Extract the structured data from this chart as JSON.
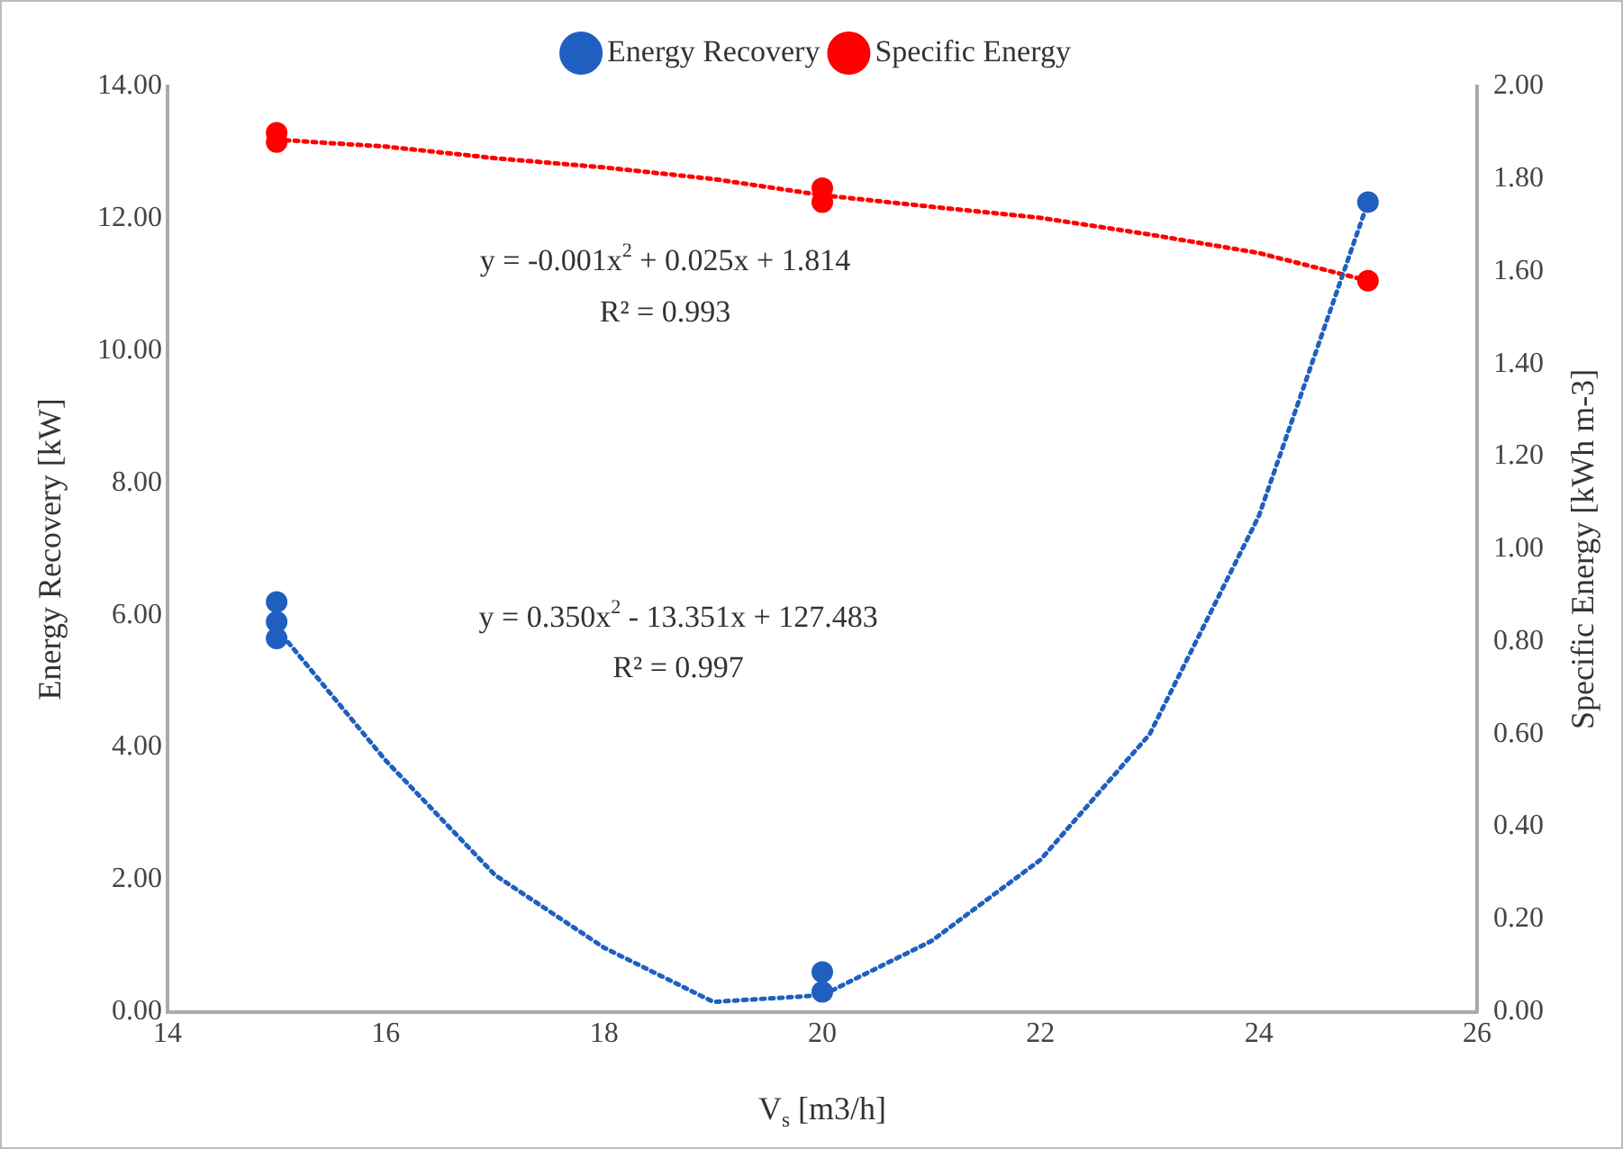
{
  "chart_data": {
    "type": "scatter",
    "xlabel": "V$_{s}$ [m3/h]",
    "ylabel": "Energy Recovery [kW]",
    "y2label": "Specific Energy [kWh m-3]",
    "xlim": [
      14,
      26
    ],
    "xticks": [
      14,
      16,
      18,
      20,
      22,
      24,
      26
    ],
    "ylim": [
      0,
      14
    ],
    "yticks": [
      {
        "value": 0,
        "label": "0.00"
      },
      {
        "value": 2,
        "label": "2.00"
      },
      {
        "value": 4,
        "label": "4.00"
      },
      {
        "value": 6,
        "label": "6.00"
      },
      {
        "value": 8,
        "label": "8.00"
      },
      {
        "value": 10,
        "label": "10.00"
      },
      {
        "value": 12,
        "label": "12.00"
      },
      {
        "value": 14,
        "label": "14.00"
      }
    ],
    "y2lim": [
      0,
      2
    ],
    "y2ticks": [
      {
        "value": 0,
        "label": "0.00"
      },
      {
        "value": 0.2,
        "label": "0.20"
      },
      {
        "value": 0.4,
        "label": "0.40"
      },
      {
        "value": 0.6,
        "label": "0.60"
      },
      {
        "value": 0.8,
        "label": "0.80"
      },
      {
        "value": 1,
        "label": "1.00"
      },
      {
        "value": 1.2,
        "label": "1.20"
      },
      {
        "value": 1.4,
        "label": "1.40"
      },
      {
        "value": 1.6,
        "label": "1.60"
      },
      {
        "value": 1.8,
        "label": "1.80"
      },
      {
        "value": 2,
        "label": "2.00"
      }
    ],
    "grid": false,
    "legend": "top",
    "marker": "circle",
    "series": [
      {
        "name": "Energy Recovery",
        "color": "#1f5fbf",
        "x": [
          15,
          15,
          15,
          20,
          20,
          25
        ],
        "values": [
          6.2,
          5.9,
          5.65,
          0.6,
          0.3,
          12.25
        ]
      },
      {
        "name": "Specific Energy",
        "color": "#ff0000",
        "axis": "y2",
        "x": [
          15,
          15,
          20,
          20,
          25
        ],
        "values": [
          1.9,
          1.88,
          1.78,
          1.75,
          1.58
        ]
      },
      {
        "type": "line",
        "color": "#1f5fbf",
        "line_style": "dotted",
        "marker": "none",
        "x": [
          15,
          16,
          17,
          18,
          19,
          20,
          21,
          22,
          23,
          24,
          25
        ],
        "values": [
          5.8,
          3.8,
          2.07,
          0.97,
          0.15,
          0.25,
          1.07,
          2.3,
          4.2,
          7.5,
          12.25
        ]
      },
      {
        "type": "line",
        "color": "#ff0000",
        "line_style": "dotted",
        "marker": "none",
        "axis": "y2",
        "x": [
          15,
          16,
          17,
          18,
          19,
          20,
          21,
          22,
          23,
          24,
          25
        ],
        "values": [
          1.885,
          1.87,
          1.845,
          1.825,
          1.8,
          1.765,
          1.74,
          1.716,
          1.68,
          1.64,
          1.58
        ]
      }
    ],
    "annotations": [
      "y = -0.001x$^{2}$ + 0.025x + 1.814",
      "R² = 0.993",
      "y = 0.350x$^{2}$ - 13.351x + 127.483",
      "R² = 0.997"
    ]
  }
}
